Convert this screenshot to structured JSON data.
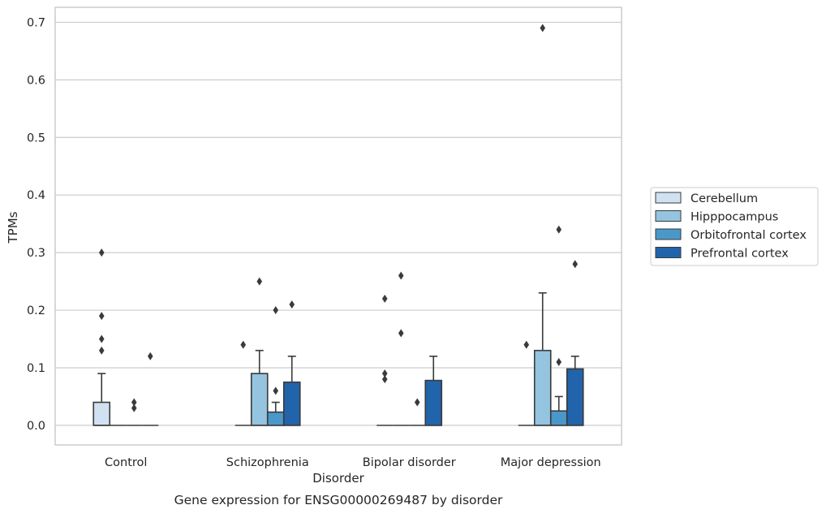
{
  "chart_data": {
    "type": "box",
    "title": "",
    "xlabel": "Disorder",
    "ylabel": "TPMs",
    "caption": "Gene expression for ENSG00000269487 by disorder",
    "categories": [
      "Control",
      "Schizophrenia",
      "Bipolar disorder",
      "Major depression"
    ],
    "ylim": [
      -0.034,
      0.726
    ],
    "yticks": [
      0.0,
      0.1,
      0.2,
      0.3,
      0.4,
      0.5,
      0.6,
      0.7
    ],
    "ytick_labels": [
      "0.0",
      "0.1",
      "0.2",
      "0.3",
      "0.4",
      "0.5",
      "0.6",
      "0.7"
    ],
    "grid": true,
    "legend_position": "right",
    "series": [
      {
        "name": "Cerebellum",
        "color": "#d0e1f2",
        "boxes": [
          {
            "q1": 0.0,
            "median": 0.0,
            "q3": 0.04,
            "whisker_low": 0.0,
            "whisker_high": 0.09,
            "outliers": [
              0.3,
              0.19,
              0.15,
              0.13
            ]
          },
          {
            "q1": 0.0,
            "median": 0.0,
            "q3": 0.0,
            "whisker_low": 0.0,
            "whisker_high": 0.0,
            "outliers": [
              0.14
            ]
          },
          {
            "q1": 0.0,
            "median": 0.0,
            "q3": 0.0,
            "whisker_low": 0.0,
            "whisker_high": 0.0,
            "outliers": [
              0.22,
              0.09,
              0.08
            ]
          },
          {
            "q1": 0.0,
            "median": 0.0,
            "q3": 0.0,
            "whisker_low": 0.0,
            "whisker_high": 0.0,
            "outliers": [
              0.14
            ]
          }
        ]
      },
      {
        "name": "Hipppocampus",
        "color": "#94c4df",
        "boxes": [
          {
            "q1": 0.0,
            "median": 0.0,
            "q3": 0.0,
            "whisker_low": 0.0,
            "whisker_high": 0.0,
            "outliers": []
          },
          {
            "q1": 0.0,
            "median": 0.0,
            "q3": 0.09,
            "whisker_low": 0.0,
            "whisker_high": 0.13,
            "outliers": [
              0.25
            ]
          },
          {
            "q1": 0.0,
            "median": 0.0,
            "q3": 0.0,
            "whisker_low": 0.0,
            "whisker_high": 0.0,
            "outliers": [
              0.26,
              0.16
            ]
          },
          {
            "q1": 0.0,
            "median": 0.0,
            "q3": 0.13,
            "whisker_low": 0.0,
            "whisker_high": 0.23,
            "outliers": [
              0.69
            ]
          }
        ]
      },
      {
        "name": "Orbitofrontal cortex",
        "color": "#4a98c9",
        "boxes": [
          {
            "q1": 0.0,
            "median": 0.0,
            "q3": 0.0,
            "whisker_low": 0.0,
            "whisker_high": 0.0,
            "outliers": [
              0.04,
              0.03
            ]
          },
          {
            "q1": 0.0,
            "median": 0.0,
            "q3": 0.023,
            "whisker_low": 0.0,
            "whisker_high": 0.04,
            "outliers": [
              0.06,
              0.2
            ]
          },
          {
            "q1": 0.0,
            "median": 0.0,
            "q3": 0.0,
            "whisker_low": 0.0,
            "whisker_high": 0.0,
            "outliers": [
              0.04
            ]
          },
          {
            "q1": 0.0,
            "median": 0.0,
            "q3": 0.025,
            "whisker_low": 0.0,
            "whisker_high": 0.05,
            "outliers": [
              0.34,
              0.11
            ]
          }
        ]
      },
      {
        "name": "Prefrontal cortex",
        "color": "#2164ab",
        "boxes": [
          {
            "q1": 0.0,
            "median": 0.0,
            "q3": 0.0,
            "whisker_low": 0.0,
            "whisker_high": 0.0,
            "outliers": [
              0.12
            ]
          },
          {
            "q1": 0.0,
            "median": 0.0,
            "q3": 0.075,
            "whisker_low": 0.0,
            "whisker_high": 0.12,
            "outliers": [
              0.21
            ]
          },
          {
            "q1": 0.0,
            "median": 0.0,
            "q3": 0.078,
            "whisker_low": 0.0,
            "whisker_high": 0.12,
            "outliers": []
          },
          {
            "q1": 0.0,
            "median": 0.0,
            "q3": 0.098,
            "whisker_low": 0.0,
            "whisker_high": 0.12,
            "outliers": [
              0.28
            ]
          }
        ]
      }
    ]
  }
}
